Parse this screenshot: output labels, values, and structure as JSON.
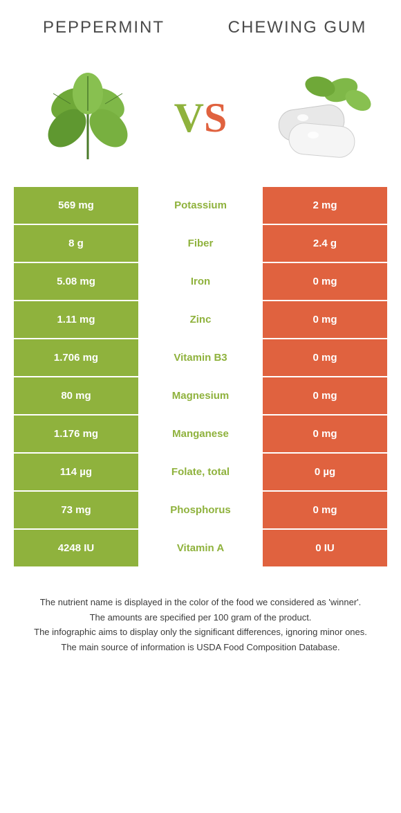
{
  "colors": {
    "left": "#8fb23d",
    "right": "#e0623f",
    "text_dark": "#4a4a4a",
    "footer_text": "#3a3a3a",
    "white": "#ffffff"
  },
  "header": {
    "left_title": "Peppermint",
    "right_title": "Chewing Gum",
    "vs_v": "V",
    "vs_s": "S"
  },
  "rows": [
    {
      "left": "569 mg",
      "label": "Potassium",
      "right": "2 mg",
      "winner": "left"
    },
    {
      "left": "8 g",
      "label": "Fiber",
      "right": "2.4 g",
      "winner": "left"
    },
    {
      "left": "5.08 mg",
      "label": "Iron",
      "right": "0 mg",
      "winner": "left"
    },
    {
      "left": "1.11 mg",
      "label": "Zinc",
      "right": "0 mg",
      "winner": "left"
    },
    {
      "left": "1.706 mg",
      "label": "Vitamin B3",
      "right": "0 mg",
      "winner": "left"
    },
    {
      "left": "80 mg",
      "label": "Magnesium",
      "right": "0 mg",
      "winner": "left"
    },
    {
      "left": "1.176 mg",
      "label": "Manganese",
      "right": "0 mg",
      "winner": "left"
    },
    {
      "left": "114 µg",
      "label": "Folate, total",
      "right": "0 µg",
      "winner": "left"
    },
    {
      "left": "73 mg",
      "label": "Phosphorus",
      "right": "0 mg",
      "winner": "left"
    },
    {
      "left": "4248 IU",
      "label": "Vitamin A",
      "right": "0 IU",
      "winner": "left"
    }
  ],
  "footer": {
    "line1": "The nutrient name is displayed in the color of the food we considered as 'winner'.",
    "line2": "The amounts are specified per 100 gram of the product.",
    "line3": "The infographic aims to display only the significant differences, ignoring minor ones.",
    "line4": "The main source of information is USDA Food Composition Database."
  }
}
